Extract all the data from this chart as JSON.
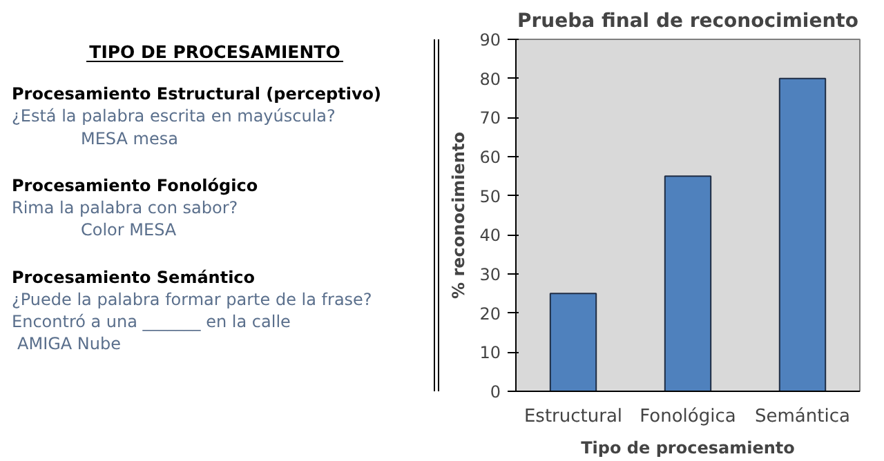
{
  "chart_data": [
    {
      "type": "other",
      "title": "TIPO DE PROCESAMIENTO",
      "annotations": [
        "Procesamiento Estructural (perceptivo)",
        "¿Está la palabra escrita en mayúscula?",
        "MESA    mesa",
        "Procesamiento Fonológico",
        "Rima la palabra con sabor?",
        "Color    MESA",
        "Procesamiento Semántico",
        "¿Puede la palabra formar parte de la frase?",
        "Encontró a una _______ en la calle",
        "AMIGA  Nube"
      ]
    },
    {
      "type": "bar",
      "title": "Prueba final de reconocimiento",
      "xlabel": "Tipo de procesamiento",
      "ylabel": "% reconocimiento",
      "categories": [
        "Estructural",
        "Fonológica",
        "Semántica"
      ],
      "values": [
        25,
        55,
        80
      ],
      "color": "#4f81bd",
      "ylim": [
        0,
        90
      ],
      "yticks": [
        0,
        10,
        20,
        30,
        40,
        50,
        60,
        70,
        80,
        90
      ],
      "grid": false
    }
  ]
}
